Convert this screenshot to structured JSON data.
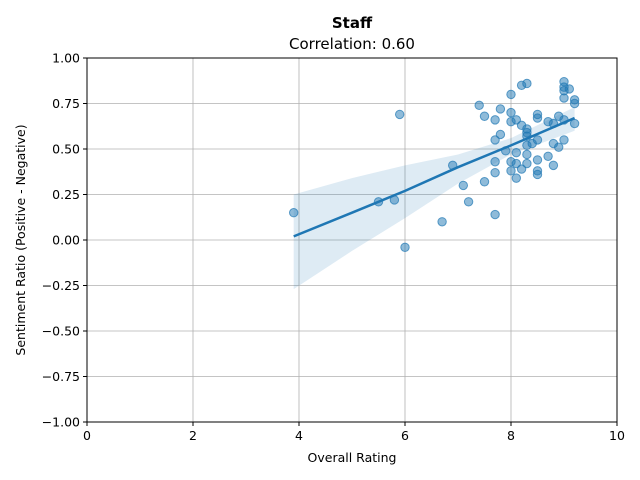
{
  "chart_data": {
    "type": "scatter",
    "title": "Staff",
    "subtitle": "Correlation: 0.60",
    "xlabel": "Overall Rating",
    "ylabel": "Sentiment Ratio (Positive - Negative)",
    "xlim": [
      0,
      10
    ],
    "ylim": [
      -1.0,
      1.0
    ],
    "xticks": [
      0,
      2,
      4,
      6,
      8,
      10
    ],
    "xtick_labels": [
      "0",
      "2",
      "4",
      "6",
      "8",
      "10"
    ],
    "yticks": [
      -1.0,
      -0.75,
      -0.5,
      -0.25,
      0.0,
      0.25,
      0.5,
      0.75,
      1.0
    ],
    "ytick_labels": [
      "−1.00",
      "−0.75",
      "−0.50",
      "−0.25",
      "0.00",
      "0.25",
      "0.50",
      "0.75",
      "1.00"
    ],
    "grid": true,
    "colors": {
      "points": "#1f77b4",
      "line": "#1f77b4",
      "band": "#cfe0f0"
    },
    "points": [
      [
        3.9,
        0.15
      ],
      [
        5.5,
        0.21
      ],
      [
        5.8,
        0.22
      ],
      [
        5.9,
        0.69
      ],
      [
        6.0,
        -0.04
      ],
      [
        6.7,
        0.1
      ],
      [
        6.9,
        0.41
      ],
      [
        7.1,
        0.3
      ],
      [
        7.2,
        0.21
      ],
      [
        7.4,
        0.74
      ],
      [
        7.5,
        0.68
      ],
      [
        7.5,
        0.32
      ],
      [
        7.7,
        0.66
      ],
      [
        7.7,
        0.55
      ],
      [
        7.7,
        0.43
      ],
      [
        7.7,
        0.37
      ],
      [
        7.7,
        0.14
      ],
      [
        7.8,
        0.72
      ],
      [
        7.8,
        0.58
      ],
      [
        7.9,
        0.49
      ],
      [
        8.0,
        0.8
      ],
      [
        8.0,
        0.7
      ],
      [
        8.0,
        0.65
      ],
      [
        8.0,
        0.43
      ],
      [
        8.0,
        0.38
      ],
      [
        8.1,
        0.66
      ],
      [
        8.1,
        0.48
      ],
      [
        8.1,
        0.42
      ],
      [
        8.1,
        0.34
      ],
      [
        8.2,
        0.85
      ],
      [
        8.2,
        0.63
      ],
      [
        8.2,
        0.39
      ],
      [
        8.3,
        0.86
      ],
      [
        8.3,
        0.61
      ],
      [
        8.3,
        0.59
      ],
      [
        8.3,
        0.57
      ],
      [
        8.3,
        0.52
      ],
      [
        8.3,
        0.47
      ],
      [
        8.3,
        0.42
      ],
      [
        8.4,
        0.53
      ],
      [
        8.5,
        0.69
      ],
      [
        8.5,
        0.67
      ],
      [
        8.5,
        0.55
      ],
      [
        8.5,
        0.44
      ],
      [
        8.5,
        0.38
      ],
      [
        8.5,
        0.36
      ],
      [
        8.7,
        0.65
      ],
      [
        8.7,
        0.46
      ],
      [
        8.8,
        0.64
      ],
      [
        8.8,
        0.53
      ],
      [
        8.8,
        0.41
      ],
      [
        8.9,
        0.68
      ],
      [
        8.9,
        0.51
      ],
      [
        9.0,
        0.87
      ],
      [
        9.0,
        0.84
      ],
      [
        9.0,
        0.82
      ],
      [
        9.0,
        0.78
      ],
      [
        9.0,
        0.66
      ],
      [
        9.0,
        0.55
      ],
      [
        9.1,
        0.83
      ],
      [
        9.2,
        0.77
      ],
      [
        9.2,
        0.75
      ],
      [
        9.2,
        0.64
      ]
    ],
    "regression": {
      "x": [
        3.9,
        5.0,
        6.0,
        7.0,
        8.0,
        9.2
      ],
      "y": [
        0.02,
        0.15,
        0.27,
        0.4,
        0.52,
        0.67
      ],
      "ci_lower": [
        -0.27,
        -0.06,
        0.12,
        0.31,
        0.47,
        0.6
      ],
      "ci_upper": [
        0.25,
        0.34,
        0.41,
        0.47,
        0.56,
        0.73
      ]
    }
  }
}
